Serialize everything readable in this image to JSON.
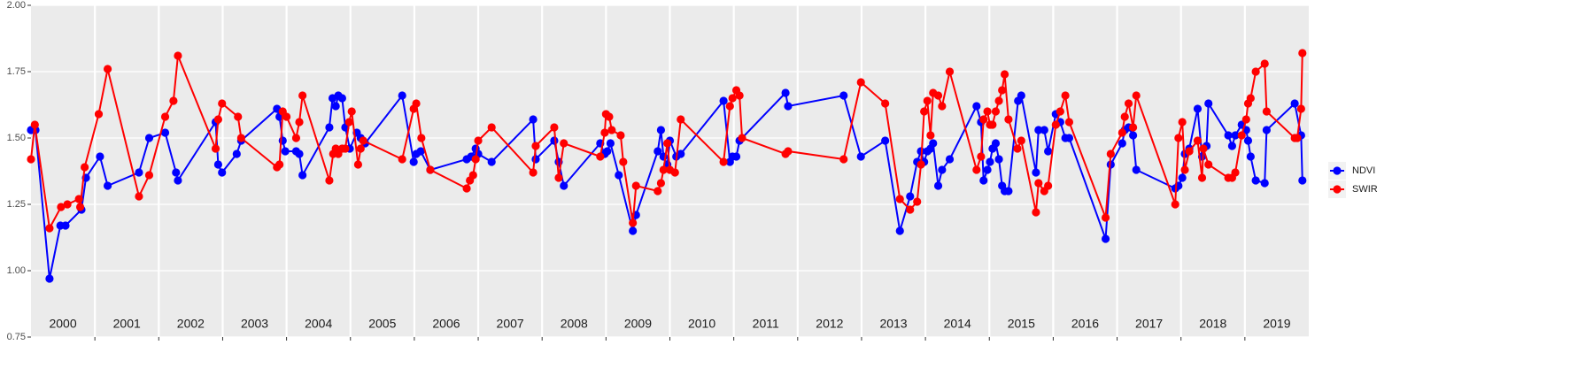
{
  "chart_data": {
    "type": "line",
    "xlim": [
      2000,
      2020
    ],
    "xgrid": [
      2001,
      2002,
      2003,
      2004,
      2005,
      2006,
      2007,
      2008,
      2009,
      2010,
      2011,
      2012,
      2013,
      2014,
      2015,
      2016,
      2017,
      2018,
      2019
    ],
    "xticks": [
      {
        "value": 2000.5,
        "label": "2000"
      },
      {
        "value": 2001.5,
        "label": "2001"
      },
      {
        "value": 2002.5,
        "label": "2002"
      },
      {
        "value": 2003.5,
        "label": "2003"
      },
      {
        "value": 2004.5,
        "label": "2004"
      },
      {
        "value": 2005.5,
        "label": "2005"
      },
      {
        "value": 2006.5,
        "label": "2006"
      },
      {
        "value": 2007.5,
        "label": "2007"
      },
      {
        "value": 2008.5,
        "label": "2008"
      },
      {
        "value": 2009.5,
        "label": "2009"
      },
      {
        "value": 2010.5,
        "label": "2010"
      },
      {
        "value": 2011.5,
        "label": "2011"
      },
      {
        "value": 2012.5,
        "label": "2012"
      },
      {
        "value": 2013.5,
        "label": "2013"
      },
      {
        "value": 2014.5,
        "label": "2014"
      },
      {
        "value": 2015.5,
        "label": "2015"
      },
      {
        "value": 2016.5,
        "label": "2016"
      },
      {
        "value": 2017.5,
        "label": "2017"
      },
      {
        "value": 2018.5,
        "label": "2018"
      },
      {
        "value": 2019.5,
        "label": "2019"
      }
    ],
    "ylim": [
      0.75,
      2.0
    ],
    "yticks": [
      {
        "value": 0.75,
        "label": "0.75"
      },
      {
        "value": 1.0,
        "label": "1.00"
      },
      {
        "value": 1.25,
        "label": "1.25"
      },
      {
        "value": 1.5,
        "label": "1.50"
      },
      {
        "value": 1.75,
        "label": "1.75"
      },
      {
        "value": 2.0,
        "label": "2.00"
      }
    ],
    "grid": true,
    "legend": "right",
    "series": [
      {
        "name": "NDVI",
        "color": "#0000ff",
        "x": [
          2000.0,
          2000.07,
          2000.29,
          2000.46,
          2000.54,
          2000.79,
          2000.86,
          2001.08,
          2001.2,
          2001.69,
          2001.85,
          2002.1,
          2002.27,
          2002.3,
          2002.89,
          2002.93,
          2002.99,
          2003.22,
          2003.29,
          2003.85,
          2003.89,
          2003.94,
          2003.98,
          2004.15,
          2004.2,
          2004.25,
          2004.67,
          2004.72,
          2004.77,
          2004.81,
          2004.87,
          2004.92,
          2004.99,
          2005.1,
          2005.16,
          2005.23,
          2005.81,
          2005.99,
          2006.03,
          2006.1,
          2006.25,
          2006.82,
          2006.89,
          2006.96,
          2007.0,
          2007.21,
          2007.86,
          2007.9,
          2008.19,
          2008.26,
          2008.34,
          2008.91,
          2008.98,
          2009.02,
          2009.07,
          2009.2,
          2009.42,
          2009.47,
          2009.81,
          2009.86,
          2009.9,
          2009.96,
          2010.0,
          2010.1,
          2010.17,
          2010.84,
          2010.94,
          2010.98,
          2011.04,
          2011.09,
          2011.81,
          2011.85,
          2012.72,
          2012.99,
          2013.37,
          2013.6,
          2013.76,
          2013.87,
          2013.93,
          2013.98,
          2014.03,
          2014.08,
          2014.12,
          2014.2,
          2014.26,
          2014.38,
          2014.8,
          2014.87,
          2014.91,
          2014.97,
          2015.01,
          2015.05,
          2015.1,
          2015.15,
          2015.2,
          2015.24,
          2015.3,
          2015.45,
          2015.5,
          2015.73,
          2015.77,
          2015.86,
          2015.92,
          2016.04,
          2016.11,
          2016.19,
          2016.25,
          2016.82,
          2016.9,
          2017.08,
          2017.12,
          2017.18,
          2017.25,
          2017.3,
          2017.91,
          2017.96,
          2018.02,
          2018.06,
          2018.13,
          2018.26,
          2018.33,
          2018.4,
          2018.43,
          2018.74,
          2018.8,
          2018.85,
          2018.95,
          2019.02,
          2019.05,
          2019.09,
          2019.17,
          2019.31,
          2019.34,
          2019.78,
          2019.88,
          2019.9
        ],
        "values": [
          1.53,
          1.53,
          0.97,
          1.17,
          1.17,
          1.23,
          1.35,
          1.43,
          1.32,
          1.37,
          1.5,
          1.52,
          1.37,
          1.34,
          1.56,
          1.4,
          1.37,
          1.44,
          1.49,
          1.61,
          1.58,
          1.49,
          1.45,
          1.45,
          1.44,
          1.36,
          1.54,
          1.65,
          1.62,
          1.66,
          1.65,
          1.54,
          1.46,
          1.52,
          1.5,
          1.48,
          1.66,
          1.41,
          1.44,
          1.45,
          1.38,
          1.42,
          1.43,
          1.46,
          1.44,
          1.41,
          1.57,
          1.42,
          1.49,
          1.41,
          1.32,
          1.48,
          1.44,
          1.45,
          1.48,
          1.36,
          1.15,
          1.21,
          1.45,
          1.53,
          1.43,
          1.4,
          1.49,
          1.43,
          1.44,
          1.64,
          1.41,
          1.43,
          1.43,
          1.49,
          1.67,
          1.62,
          1.66,
          1.43,
          1.49,
          1.15,
          1.28,
          1.41,
          1.45,
          1.41,
          1.45,
          1.46,
          1.48,
          1.32,
          1.38,
          1.42,
          1.62,
          1.56,
          1.34,
          1.38,
          1.41,
          1.46,
          1.48,
          1.42,
          1.32,
          1.3,
          1.3,
          1.64,
          1.66,
          1.37,
          1.53,
          1.53,
          1.45,
          1.59,
          1.56,
          1.5,
          1.5,
          1.12,
          1.4,
          1.48,
          1.53,
          1.54,
          1.51,
          1.38,
          1.31,
          1.32,
          1.35,
          1.44,
          1.46,
          1.61,
          1.43,
          1.47,
          1.63,
          1.51,
          1.47,
          1.51,
          1.55,
          1.53,
          1.49,
          1.43,
          1.34,
          1.33,
          1.53,
          1.63,
          1.51,
          1.34
        ]
      },
      {
        "name": "SWIR",
        "color": "#ff0000",
        "x": [
          2000.0,
          2000.06,
          2000.29,
          2000.47,
          2000.57,
          2000.75,
          2000.77,
          2000.84,
          2001.06,
          2001.2,
          2001.69,
          2001.85,
          2002.1,
          2002.23,
          2002.3,
          2002.89,
          2002.93,
          2002.99,
          2003.24,
          2003.29,
          2003.85,
          2003.89,
          2003.94,
          2004.0,
          2004.15,
          2004.2,
          2004.25,
          2004.67,
          2004.73,
          2004.77,
          2004.81,
          2004.87,
          2004.92,
          2004.98,
          2005.02,
          2005.12,
          2005.16,
          2005.2,
          2005.81,
          2005.99,
          2006.03,
          2006.11,
          2006.25,
          2006.82,
          2006.87,
          2006.92,
          2006.96,
          2007.0,
          2007.21,
          2007.86,
          2007.9,
          2008.19,
          2008.26,
          2008.34,
          2008.91,
          2008.98,
          2009.0,
          2009.05,
          2009.09,
          2009.23,
          2009.27,
          2009.42,
          2009.47,
          2009.81,
          2009.86,
          2009.9,
          2009.96,
          2010.0,
          2010.08,
          2010.17,
          2010.84,
          2010.94,
          2010.98,
          2011.04,
          2011.09,
          2011.13,
          2011.81,
          2011.85,
          2012.72,
          2012.99,
          2013.37,
          2013.6,
          2013.76,
          2013.87,
          2013.93,
          2013.98,
          2014.03,
          2014.08,
          2014.12,
          2014.2,
          2014.26,
          2014.38,
          2014.8,
          2014.87,
          2014.91,
          2014.97,
          2015.01,
          2015.05,
          2015.1,
          2015.15,
          2015.2,
          2015.24,
          2015.3,
          2015.44,
          2015.5,
          2015.73,
          2015.77,
          2015.86,
          2015.92,
          2016.04,
          2016.11,
          2016.19,
          2016.25,
          2016.82,
          2016.9,
          2017.08,
          2017.12,
          2017.18,
          2017.25,
          2017.3,
          2017.91,
          2017.96,
          2018.02,
          2018.06,
          2018.13,
          2018.26,
          2018.33,
          2018.35,
          2018.43,
          2018.74,
          2018.8,
          2018.85,
          2018.95,
          2019.02,
          2019.05,
          2019.09,
          2019.17,
          2019.31,
          2019.34,
          2019.78,
          2019.82,
          2019.88,
          2019.9
        ],
        "values": [
          1.42,
          1.55,
          1.16,
          1.24,
          1.25,
          1.27,
          1.24,
          1.39,
          1.59,
          1.76,
          1.28,
          1.36,
          1.58,
          1.64,
          1.81,
          1.46,
          1.57,
          1.63,
          1.58,
          1.5,
          1.39,
          1.4,
          1.6,
          1.58,
          1.5,
          1.56,
          1.66,
          1.34,
          1.44,
          1.46,
          1.44,
          1.46,
          1.46,
          1.56,
          1.6,
          1.4,
          1.46,
          1.49,
          1.42,
          1.61,
          1.63,
          1.5,
          1.38,
          1.31,
          1.34,
          1.36,
          1.42,
          1.49,
          1.54,
          1.37,
          1.47,
          1.54,
          1.35,
          1.48,
          1.43,
          1.52,
          1.59,
          1.58,
          1.53,
          1.51,
          1.41,
          1.18,
          1.32,
          1.3,
          1.33,
          1.38,
          1.48,
          1.38,
          1.37,
          1.57,
          1.41,
          1.62,
          1.65,
          1.68,
          1.66,
          1.5,
          1.44,
          1.45,
          1.42,
          1.71,
          1.63,
          1.27,
          1.23,
          1.26,
          1.4,
          1.6,
          1.64,
          1.51,
          1.67,
          1.66,
          1.62,
          1.75,
          1.38,
          1.43,
          1.57,
          1.6,
          1.55,
          1.55,
          1.6,
          1.64,
          1.68,
          1.74,
          1.57,
          1.46,
          1.49,
          1.22,
          1.33,
          1.3,
          1.32,
          1.55,
          1.6,
          1.66,
          1.56,
          1.2,
          1.44,
          1.52,
          1.58,
          1.63,
          1.54,
          1.66,
          1.25,
          1.5,
          1.56,
          1.38,
          1.45,
          1.49,
          1.35,
          1.46,
          1.4,
          1.35,
          1.35,
          1.37,
          1.51,
          1.57,
          1.63,
          1.65,
          1.75,
          1.78,
          1.6,
          1.5,
          1.5,
          1.61,
          1.82
        ]
      }
    ]
  }
}
